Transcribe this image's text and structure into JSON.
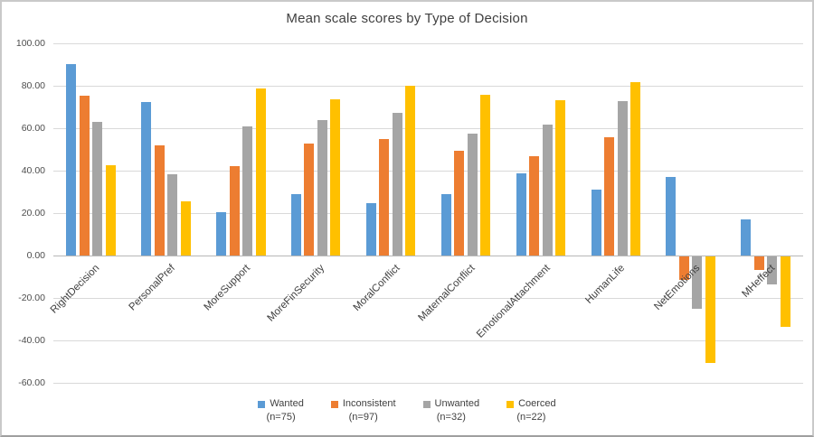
{
  "chart_data": {
    "type": "bar",
    "title": "Mean scale scores by Type of Decision",
    "xlabel": "",
    "ylabel": "",
    "ylim": [
      -60,
      100
    ],
    "ytick_step": 20,
    "grid": true,
    "legend_position": "bottom",
    "ytick_labels": [
      "100.00",
      "80.00",
      "60.00",
      "40.00",
      "20.00",
      "0.00",
      "-20.00",
      "-40.00",
      "-60.00"
    ],
    "ytick_values": [
      100,
      80,
      60,
      40,
      20,
      0,
      -20,
      -40,
      -60
    ],
    "categories": [
      "RightDecision",
      "PersonalPref",
      "MoreSupport",
      "MoreFinSecurity",
      "MoralConflict",
      "MaternalConflict",
      "EmotionalAttachment",
      "HumanLife",
      "NetEmotions",
      "MHeffect"
    ],
    "series": [
      {
        "name": "Wanted",
        "n_label": "(n=75)",
        "color": "#5B9BD5",
        "values": [
          90.3,
          72.5,
          20.6,
          29.0,
          24.5,
          29.0,
          38.9,
          30.9,
          36.9,
          17.0
        ]
      },
      {
        "name": "Inconsistent",
        "n_label": "(n=97)",
        "color": "#ED7D31",
        "values": [
          75.5,
          52.0,
          42.2,
          52.9,
          55.0,
          49.4,
          47.0,
          55.9,
          -11.0,
          -6.5
        ]
      },
      {
        "name": "Unwanted",
        "n_label": "(n=32)",
        "color": "#A5A5A5",
        "values": [
          63.0,
          38.2,
          60.7,
          63.8,
          67.3,
          57.4,
          61.8,
          72.9,
          -24.5,
          -13.0
        ]
      },
      {
        "name": "Coerced",
        "n_label": "(n=22)",
        "color": "#FFC000",
        "values": [
          42.5,
          25.6,
          78.7,
          73.6,
          80.1,
          75.6,
          73.1,
          81.9,
          -50.0,
          -33.0
        ]
      }
    ]
  }
}
